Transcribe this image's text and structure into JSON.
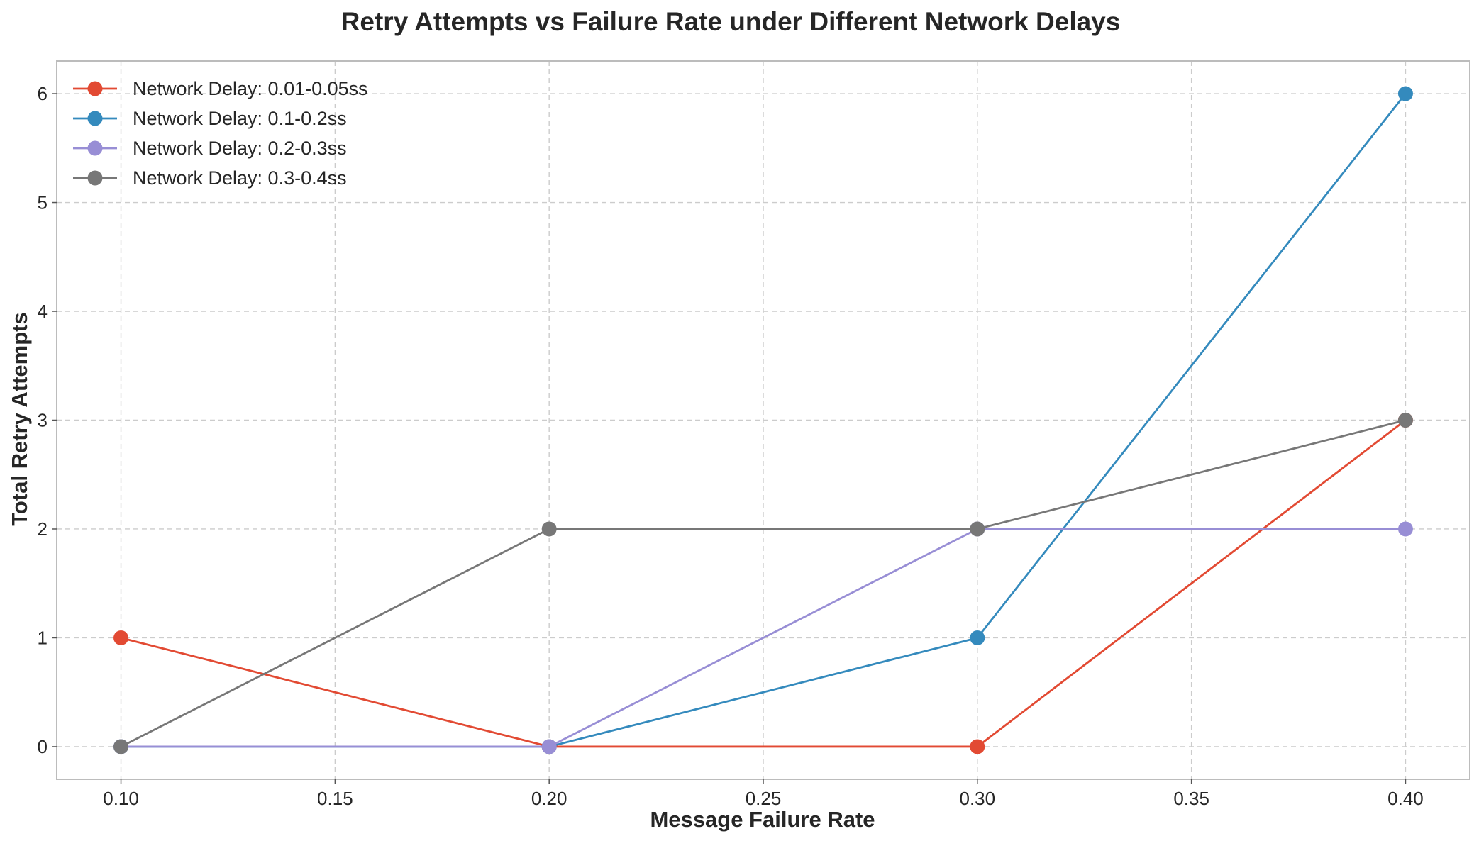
{
  "chart_data": {
    "type": "line",
    "title": "Retry Attempts vs Failure Rate under Different Network Delays",
    "xlabel": "Message Failure Rate",
    "ylabel": "Total Retry Attempts",
    "x": [
      0.1,
      0.2,
      0.3,
      0.4
    ],
    "xlim": [
      0.085,
      0.415
    ],
    "ylim": [
      -0.3,
      6.3
    ],
    "xticks": [
      0.1,
      0.15,
      0.2,
      0.25,
      0.3,
      0.35,
      0.4
    ],
    "xtick_labels": [
      "0.10",
      "0.15",
      "0.20",
      "0.25",
      "0.30",
      "0.35",
      "0.40"
    ],
    "yticks": [
      0,
      1,
      2,
      3,
      4,
      5,
      6
    ],
    "ytick_labels": [
      "0",
      "1",
      "2",
      "3",
      "4",
      "5",
      "6"
    ],
    "grid": true,
    "legend_position": "top-left",
    "series": [
      {
        "name": "Network Delay: 0.01-0.05ss",
        "color": "#E24A33",
        "values": [
          1,
          0,
          0,
          3
        ]
      },
      {
        "name": "Network Delay: 0.1-0.2ss",
        "color": "#348ABD",
        "values": [
          0,
          0,
          1,
          6
        ]
      },
      {
        "name": "Network Delay: 0.2-0.3ss",
        "color": "#988ED5",
        "values": [
          0,
          0,
          2,
          2
        ]
      },
      {
        "name": "Network Delay: 0.3-0.4ss",
        "color": "#777777",
        "values": [
          0,
          2,
          2,
          3
        ]
      }
    ]
  }
}
